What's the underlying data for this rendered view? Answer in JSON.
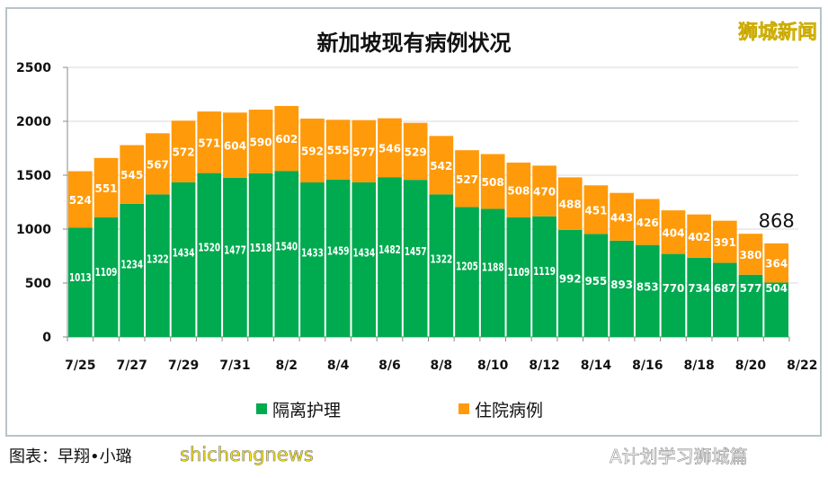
{
  "watermark": "狮城新闻",
  "caption": "图表：早翔•小璐",
  "overlay_text": "shichengnews",
  "wechat_label": "A计划学习狮城篇",
  "colors": {
    "green": "#00aa4f",
    "orange": "#ff9a0a"
  },
  "chart_data": {
    "type": "bar",
    "stacked": true,
    "title": "新加坡现有病例状况",
    "categories": [
      "7/25",
      "7/26",
      "7/27",
      "7/28",
      "7/29",
      "7/30",
      "7/31",
      "8/1",
      "8/2",
      "8/3",
      "8/4",
      "8/5",
      "8/6",
      "8/7",
      "8/8",
      "8/9",
      "8/10",
      "8/11",
      "8/12",
      "8/13",
      "8/14",
      "8/15",
      "8/16",
      "8/17",
      "8/18",
      "8/19",
      "8/20",
      "8/21"
    ],
    "x_tick_labels": [
      "7/25",
      "7/27",
      "7/29",
      "7/31",
      "8/2",
      "8/4",
      "8/6",
      "8/8",
      "8/10",
      "8/12",
      "8/14",
      "8/16",
      "8/18",
      "8/20",
      "8/22"
    ],
    "y_ticks": [
      0,
      500,
      1000,
      1500,
      2000,
      2500
    ],
    "ylim": [
      0,
      2500
    ],
    "grid": true,
    "legend_position": "bottom",
    "series": [
      {
        "name": "隔离护理",
        "color": "#00aa4f",
        "values": [
          1013,
          1109,
          1234,
          1322,
          1434,
          1520,
          1477,
          1518,
          1540,
          1433,
          1459,
          1434,
          1482,
          1457,
          1322,
          1205,
          1188,
          1109,
          1119,
          992,
          955,
          893,
          853,
          770,
          734,
          687,
          577,
          504
        ]
      },
      {
        "name": "住院病例",
        "color": "#ff9a0a",
        "values": [
          524,
          551,
          545,
          567,
          572,
          571,
          604,
          590,
          602,
          592,
          555,
          577,
          546,
          529,
          542,
          527,
          508,
          508,
          470,
          488,
          451,
          443,
          426,
          404,
          402,
          391,
          380,
          364
        ]
      }
    ],
    "annotation": "868"
  }
}
